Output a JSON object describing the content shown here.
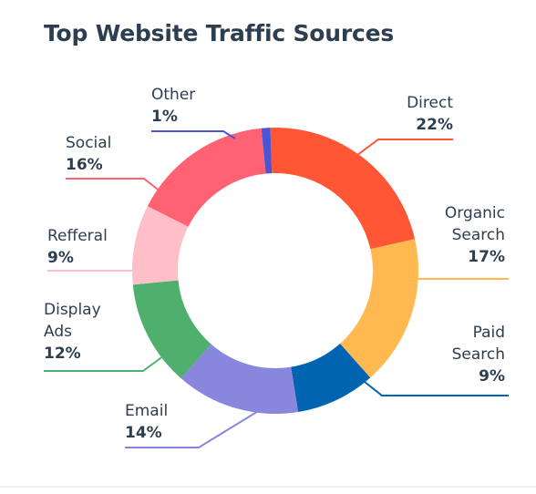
{
  "title": "Top Website Traffic Sources",
  "chart_data": {
    "type": "donut",
    "title": "Top Website Traffic Sources",
    "unit": "%",
    "series": [
      {
        "name": "Direct",
        "lines": [
          "Direct"
        ],
        "value": 22,
        "label": "22%",
        "color": "#ff5736"
      },
      {
        "name": "Organic Search",
        "lines": [
          "Organic",
          "Search"
        ],
        "value": 17,
        "label": "17%",
        "color": "#ffb950"
      },
      {
        "name": "Paid Search",
        "lines": [
          "Paid",
          "Search"
        ],
        "value": 9,
        "label": "9%",
        "color": "#0164b0"
      },
      {
        "name": "Email",
        "lines": [
          "Email"
        ],
        "value": 14,
        "label": "14%",
        "color": "#8887dd"
      },
      {
        "name": "Display Ads",
        "lines": [
          "Display",
          "Ads"
        ],
        "value": 12,
        "label": "12%",
        "color": "#4fb06d"
      },
      {
        "name": "Refferal",
        "lines": [
          "Refferal"
        ],
        "value": 9,
        "label": "9%",
        "color": "#ffbfc8"
      },
      {
        "name": "Social",
        "lines": [
          "Social"
        ],
        "value": 16,
        "label": "16%",
        "color": "#ff6373"
      },
      {
        "name": "Other",
        "lines": [
          "Other"
        ],
        "value": 1,
        "label": "1%",
        "color": "#4a55d4"
      }
    ],
    "start_category": "Other",
    "direction": "clockwise",
    "legend": "leader-line labels around donut"
  }
}
